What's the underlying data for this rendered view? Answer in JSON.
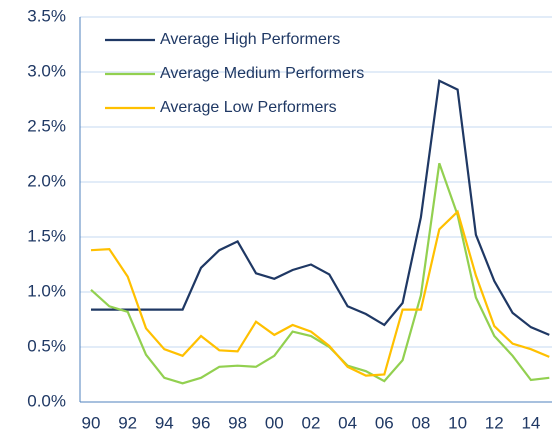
{
  "chart_data": {
    "type": "line",
    "categories": [
      "90",
      null,
      "92",
      null,
      "94",
      null,
      "96",
      null,
      "98",
      null,
      "00",
      null,
      "02",
      null,
      "04",
      null,
      "06",
      null,
      "08",
      null,
      "10",
      null,
      "12",
      null,
      "14",
      null
    ],
    "series": [
      {
        "name": "Average High Performers",
        "color": "#1f3864",
        "values": [
          0.84,
          0.84,
          0.84,
          0.84,
          0.84,
          0.84,
          1.22,
          1.38,
          1.46,
          1.17,
          1.12,
          1.2,
          1.25,
          1.16,
          0.87,
          0.8,
          0.7,
          0.9,
          1.68,
          2.92,
          2.84,
          1.52,
          1.1,
          0.81,
          0.68,
          0.61
        ]
      },
      {
        "name": "Average Medium Performers",
        "color": "#92d050",
        "values": [
          1.02,
          0.87,
          0.82,
          0.43,
          0.22,
          0.17,
          0.22,
          0.32,
          0.33,
          0.32,
          0.42,
          0.64,
          0.6,
          0.5,
          0.33,
          0.28,
          0.19,
          0.38,
          0.97,
          2.17,
          1.7,
          0.95,
          0.6,
          0.42,
          0.2,
          0.22
        ]
      },
      {
        "name": "Average Low Performers",
        "color": "#ffc000",
        "values": [
          1.38,
          1.39,
          1.14,
          0.67,
          0.48,
          0.42,
          0.6,
          0.47,
          0.46,
          0.73,
          0.61,
          0.7,
          0.64,
          0.51,
          0.32,
          0.24,
          0.25,
          0.84,
          0.84,
          1.57,
          1.73,
          1.15,
          0.69,
          0.53,
          0.48,
          0.41
        ]
      }
    ],
    "ylim": [
      0,
      3.5
    ],
    "yticks": [
      {
        "value": 0,
        "label": "0.0%"
      },
      {
        "value": 0.5,
        "label": "0.5%"
      },
      {
        "value": 1,
        "label": "1.0%"
      },
      {
        "value": 1.5,
        "label": "1.5%"
      },
      {
        "value": 2,
        "label": "2.0%"
      },
      {
        "value": 2.5,
        "label": "2.5%"
      },
      {
        "value": 3,
        "label": "3.0%"
      },
      {
        "value": 3.5,
        "label": "3.5%"
      }
    ],
    "grid": true
  }
}
